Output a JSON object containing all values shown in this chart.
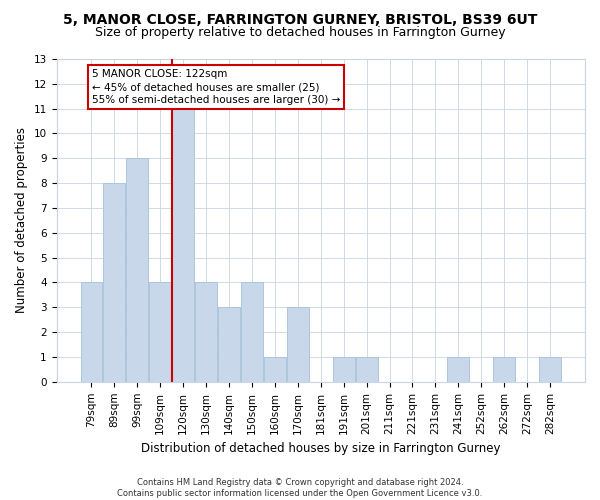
{
  "title": "5, MANOR CLOSE, FARRINGTON GURNEY, BRISTOL, BS39 6UT",
  "subtitle": "Size of property relative to detached houses in Farrington Gurney",
  "xlabel": "Distribution of detached houses by size in Farrington Gurney",
  "ylabel": "Number of detached properties",
  "bar_labels": [
    "79sqm",
    "89sqm",
    "99sqm",
    "109sqm",
    "120sqm",
    "130sqm",
    "140sqm",
    "150sqm",
    "160sqm",
    "170sqm",
    "181sqm",
    "191sqm",
    "201sqm",
    "211sqm",
    "221sqm",
    "231sqm",
    "241sqm",
    "252sqm",
    "262sqm",
    "272sqm",
    "282sqm"
  ],
  "bar_values": [
    4,
    8,
    9,
    4,
    11,
    4,
    3,
    4,
    1,
    3,
    0,
    1,
    1,
    0,
    0,
    0,
    1,
    0,
    1,
    0,
    1
  ],
  "bar_color": "#c8d8ea",
  "bar_edge_color": "#aec6dc",
  "grid_color": "#c8d5e5",
  "ref_line_x": 4.0,
  "ref_line_color": "#cc0000",
  "annotation_line1": "5 MANOR CLOSE: 122sqm",
  "annotation_line2": "← 45% of detached houses are smaller (25)",
  "annotation_line3": "55% of semi-detached houses are larger (30) →",
  "annotation_box_color": "#cc0000",
  "ylim": [
    0,
    13
  ],
  "yticks": [
    0,
    1,
    2,
    3,
    4,
    5,
    6,
    7,
    8,
    9,
    10,
    11,
    12,
    13
  ],
  "footnote": "Contains HM Land Registry data © Crown copyright and database right 2024.\nContains public sector information licensed under the Open Government Licence v3.0.",
  "bg_color": "#ffffff",
  "title_fontsize": 10,
  "subtitle_fontsize": 9,
  "xlabel_fontsize": 8.5,
  "ylabel_fontsize": 8.5,
  "tick_fontsize": 7.5,
  "annotation_fontsize": 7.5,
  "footnote_fontsize": 6
}
